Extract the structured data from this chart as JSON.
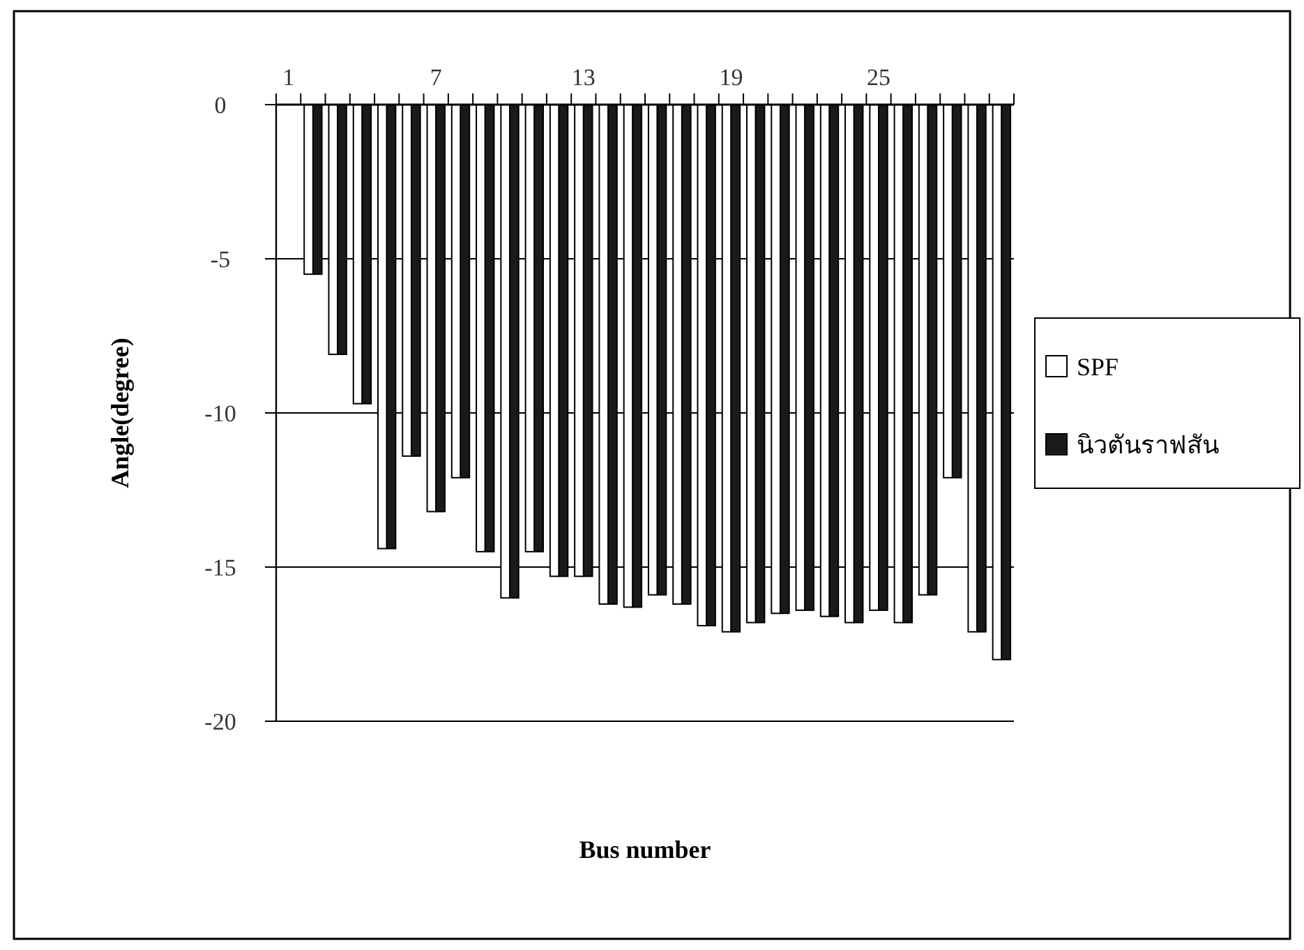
{
  "chart_data": {
    "type": "bar",
    "xlabel": "Bus number",
    "ylabel": "Angle(degree)",
    "categories": [
      "1",
      null,
      null,
      null,
      null,
      null,
      "7",
      null,
      null,
      null,
      null,
      null,
      "13",
      null,
      null,
      null,
      null,
      null,
      "19",
      null,
      null,
      null,
      null,
      null,
      "25",
      null,
      null,
      null,
      null,
      null
    ],
    "series": [
      {
        "name": "SPF",
        "color": "#ffffff",
        "values": [
          0,
          -5.5,
          -8.1,
          -9.7,
          -14.4,
          -11.4,
          -13.2,
          -12.1,
          -14.5,
          -16.0,
          -14.5,
          -15.3,
          -15.3,
          -16.2,
          -16.3,
          -15.9,
          -16.2,
          -16.9,
          -17.1,
          -16.8,
          -16.5,
          -16.4,
          -16.6,
          -16.8,
          -16.4,
          -16.8,
          -15.9,
          -12.1,
          -17.1,
          -18.0
        ]
      },
      {
        "name": "นิวตันราฟสัน",
        "color": "#1a1a1a",
        "values": [
          0,
          -5.5,
          -8.1,
          -9.7,
          -14.4,
          -11.4,
          -13.2,
          -12.1,
          -14.5,
          -16.0,
          -14.5,
          -15.3,
          -15.3,
          -16.2,
          -16.3,
          -15.9,
          -16.2,
          -16.9,
          -17.1,
          -16.8,
          -16.5,
          -16.4,
          -16.6,
          -16.8,
          -16.4,
          -16.8,
          -15.9,
          -12.1,
          -17.1,
          -18.0
        ]
      }
    ],
    "ylim": [
      -20,
      0
    ],
    "yticks": [
      0,
      -5,
      -10,
      -15,
      -20
    ],
    "grid": "y",
    "legend": "right"
  }
}
